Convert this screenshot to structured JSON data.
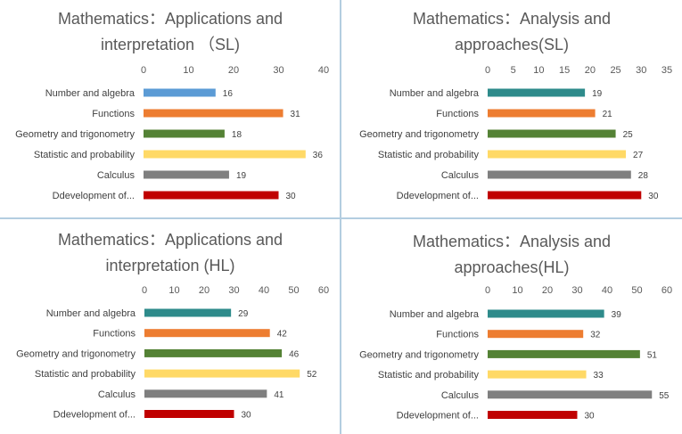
{
  "colors": {
    "blue": "#5b9bd5",
    "orange": "#ed7d31",
    "green": "#548235",
    "yellow": "#ffd966",
    "gray": "#7f7f7f",
    "red": "#c00000",
    "teal": "#2e8b8b",
    "divider": "#b3cde0"
  },
  "chart_data": [
    {
      "type": "bar",
      "orientation": "horizontal",
      "title_lines": [
        "Mathematics：Applications and",
        "interpretation （SL)"
      ],
      "categories": [
        "Number and algebra",
        "Functions",
        "Geometry and trigonometry",
        "Statistic and probability",
        "Calculus",
        "Ddevelopment of..."
      ],
      "values": [
        16,
        31,
        18,
        36,
        19,
        30
      ],
      "colors": [
        "blue",
        "orange",
        "green",
        "yellow",
        "gray",
        "red"
      ],
      "xlim": [
        0,
        40
      ],
      "ticks": [
        0,
        10,
        20,
        30,
        40
      ],
      "axis_position": "top",
      "grid": false,
      "legend": "none"
    },
    {
      "type": "bar",
      "orientation": "horizontal",
      "title_lines": [
        "Mathematics：Analysis and",
        "approaches(SL)"
      ],
      "categories": [
        "Number and algebra",
        "Functions",
        "Geometry and trigonometry",
        "Statistic and probability",
        "Calculus",
        "Ddevelopment of..."
      ],
      "values": [
        19,
        21,
        25,
        27,
        28,
        30
      ],
      "colors": [
        "teal",
        "orange",
        "green",
        "yellow",
        "gray",
        "red"
      ],
      "xlim": [
        0,
        35
      ],
      "ticks": [
        0,
        5,
        10,
        15,
        20,
        25,
        30,
        35
      ],
      "axis_position": "top",
      "grid": false,
      "legend": "none"
    },
    {
      "type": "bar",
      "orientation": "horizontal",
      "title_lines": [
        "Mathematics：Applications and",
        "interpretation (HL)"
      ],
      "categories": [
        "Number and algebra",
        "Functions",
        "Geometry and trigonometry",
        "Statistic and probability",
        "Calculus",
        "Ddevelopment of..."
      ],
      "values": [
        29,
        42,
        46,
        52,
        41,
        30
      ],
      "colors": [
        "teal",
        "orange",
        "green",
        "yellow",
        "gray",
        "red"
      ],
      "xlim": [
        0,
        60
      ],
      "ticks": [
        0,
        10,
        20,
        30,
        40,
        50,
        60
      ],
      "axis_position": "top",
      "grid": false,
      "legend": "none"
    },
    {
      "type": "bar",
      "orientation": "horizontal",
      "title_lines": [
        "Mathematics：Analysis and",
        "approaches(HL)"
      ],
      "categories": [
        "Number and algebra",
        "Functions",
        "Geometry and trigonometry",
        "Statistic and probability",
        "Calculus",
        "Ddevelopment of..."
      ],
      "values": [
        39,
        32,
        51,
        33,
        55,
        30
      ],
      "colors": [
        "teal",
        "orange",
        "green",
        "yellow",
        "gray",
        "red"
      ],
      "xlim": [
        0,
        60
      ],
      "ticks": [
        0,
        10,
        20,
        30,
        40,
        50,
        60
      ],
      "axis_position": "top",
      "grid": false,
      "legend": "none"
    }
  ]
}
